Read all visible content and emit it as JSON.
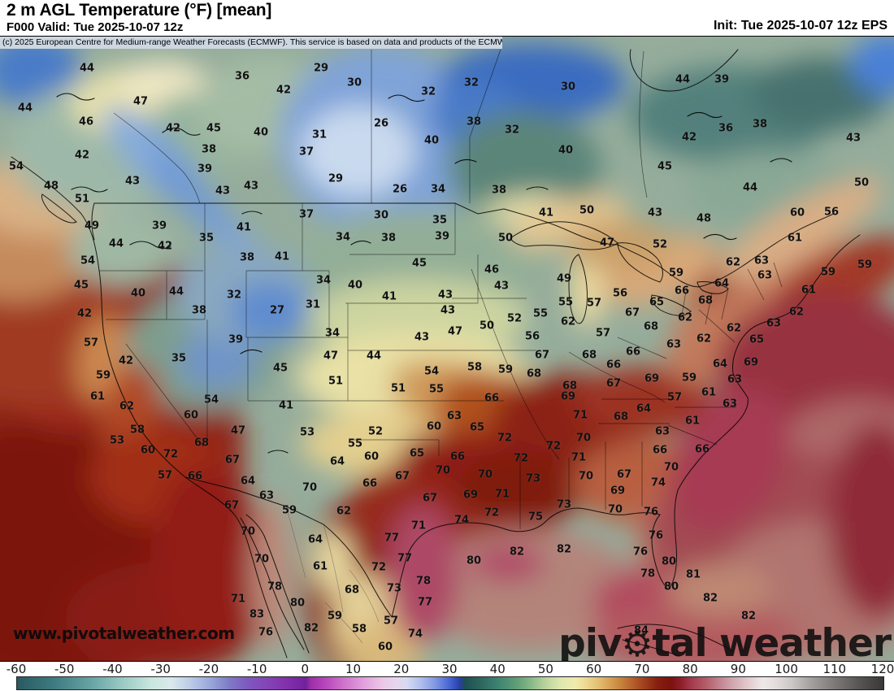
{
  "header": {
    "title": "2 m AGL Temperature (°F) [mean]",
    "subtitle_left": "F000 Valid: Tue 2025-10-07 12z",
    "subtitle_right": "Init: Tue 2025-10-07 12z EPS",
    "copyright": "(c) 2025 European Centre for Medium-range Weather Forecasts (ECMWF). This service is based on data and products of the ECMWF."
  },
  "watermarks": {
    "bottom_left": "www.pivotalweather.com",
    "brand_prefix": "piv",
    "brand_gear": "⚙",
    "brand_suffix": "tal weather"
  },
  "chart_data": {
    "type": "heatmap",
    "title": "2 m AGL Temperature (°F) [mean]",
    "units": "°F",
    "model": "EPS (ECMWF ensemble)",
    "forecast_hour": "F000",
    "init_time": "Tue 2025-10-07 12z",
    "valid_time": "Tue 2025-10-07 12z",
    "region": "North America (CONUS, southern Canada, Mexico)",
    "colorbar": {
      "min": -60,
      "max": 120,
      "tick_step": 10,
      "ticks": [
        -60,
        -50,
        -40,
        -30,
        -20,
        -10,
        0,
        10,
        20,
        30,
        40,
        50,
        60,
        70,
        80,
        90,
        100,
        110,
        120
      ],
      "stops": [
        {
          "t": -60,
          "c": "#2a5962"
        },
        {
          "t": -52,
          "c": "#3f7c83"
        },
        {
          "t": -44,
          "c": "#6ba7a8"
        },
        {
          "t": -38,
          "c": "#9ccac4"
        },
        {
          "t": -32,
          "c": "#c9e7de"
        },
        {
          "t": -28,
          "c": "#d9e9ec"
        },
        {
          "t": -24,
          "c": "#bccbe8"
        },
        {
          "t": -20,
          "c": "#9aa9da"
        },
        {
          "t": -16,
          "c": "#7f7cc8"
        },
        {
          "t": -12,
          "c": "#7e58be"
        },
        {
          "t": -8,
          "c": "#8444b6"
        },
        {
          "t": -4,
          "c": "#8231ac"
        },
        {
          "t": 0,
          "c": "#71219b"
        },
        {
          "t": 1,
          "c": "#9c2fa8"
        },
        {
          "t": 4,
          "c": "#b846bc"
        },
        {
          "t": 8,
          "c": "#cf74cc"
        },
        {
          "t": 12,
          "c": "#e0a0dc"
        },
        {
          "t": 16,
          "c": "#ecc8e8"
        },
        {
          "t": 19,
          "c": "#e6d6ee"
        },
        {
          "t": 21,
          "c": "#d5daf2"
        },
        {
          "t": 24,
          "c": "#aebdee"
        },
        {
          "t": 27,
          "c": "#7e95e2"
        },
        {
          "t": 30,
          "c": "#4463cf"
        },
        {
          "t": 32,
          "c": "#2a3fa4"
        },
        {
          "t": 33,
          "c": "#1d4f52"
        },
        {
          "t": 36,
          "c": "#2a645c"
        },
        {
          "t": 40,
          "c": "#3f8372"
        },
        {
          "t": 44,
          "c": "#62a078"
        },
        {
          "t": 47,
          "c": "#8cba89"
        },
        {
          "t": 50,
          "c": "#bcd59e"
        },
        {
          "t": 53,
          "c": "#e0e8af"
        },
        {
          "t": 56,
          "c": "#f1ebad"
        },
        {
          "t": 58,
          "c": "#edda92"
        },
        {
          "t": 61,
          "c": "#e2bc6f"
        },
        {
          "t": 64,
          "c": "#d1964b"
        },
        {
          "t": 67,
          "c": "#bd6c31"
        },
        {
          "t": 70,
          "c": "#a2441f"
        },
        {
          "t": 73,
          "c": "#861f10"
        },
        {
          "t": 76,
          "c": "#7c120e"
        },
        {
          "t": 78,
          "c": "#8f1f2d"
        },
        {
          "t": 80,
          "c": "#a23a4c"
        },
        {
          "t": 83,
          "c": "#b25c68"
        },
        {
          "t": 86,
          "c": "#c28490"
        },
        {
          "t": 89,
          "c": "#d2abb0"
        },
        {
          "t": 92,
          "c": "#e2cbce"
        },
        {
          "t": 95,
          "c": "#eee9e9"
        },
        {
          "t": 98,
          "c": "#e2dada"
        },
        {
          "t": 101,
          "c": "#cbc7c7"
        },
        {
          "t": 105,
          "c": "#a49f9f"
        },
        {
          "t": 110,
          "c": "#7c7878"
        },
        {
          "t": 115,
          "c": "#575454"
        },
        {
          "t": 120,
          "c": "#393737"
        }
      ]
    },
    "temperature_labels": [
      [
        107,
        83,
        44
      ],
      [
        298,
        93,
        36
      ],
      [
        349,
        110,
        42
      ],
      [
        31,
        132,
        44
      ],
      [
        173,
        124,
        47
      ],
      [
        106,
        149,
        46
      ],
      [
        213,
        157,
        42
      ],
      [
        263,
        157,
        45
      ],
      [
        321,
        162,
        40
      ],
      [
        257,
        183,
        38
      ],
      [
        101,
        190,
        42
      ],
      [
        252,
        207,
        39
      ],
      [
        20,
        204,
        54
      ],
      [
        163,
        222,
        43
      ],
      [
        63,
        228,
        48
      ],
      [
        274,
        234,
        43
      ],
      [
        309,
        228,
        43
      ],
      [
        101,
        244,
        51
      ],
      [
        113,
        277,
        49
      ],
      [
        196,
        277,
        39
      ],
      [
        300,
        279,
        41
      ],
      [
        254,
        292,
        35
      ],
      [
        143,
        299,
        44
      ],
      [
        203,
        302,
        42
      ],
      [
        395,
        83,
        29
      ],
      [
        436,
        101,
        30
      ],
      [
        527,
        112,
        32
      ],
      [
        580,
        101,
        32
      ],
      [
        699,
        106,
        30
      ],
      [
        469,
        151,
        26
      ],
      [
        583,
        149,
        38
      ],
      [
        630,
        159,
        32
      ],
      [
        393,
        165,
        31
      ],
      [
        531,
        172,
        40
      ],
      [
        696,
        184,
        40
      ],
      [
        377,
        186,
        37
      ],
      [
        413,
        219,
        29
      ],
      [
        492,
        232,
        26
      ],
      [
        539,
        232,
        34
      ],
      [
        614,
        233,
        38
      ],
      [
        377,
        263,
        37
      ],
      [
        469,
        264,
        30
      ],
      [
        541,
        270,
        35
      ],
      [
        422,
        291,
        34
      ],
      [
        478,
        292,
        38
      ],
      [
        544,
        290,
        39
      ],
      [
        840,
        97,
        44
      ],
      [
        888,
        97,
        39
      ],
      [
        935,
        152,
        38
      ],
      [
        893,
        157,
        36
      ],
      [
        848,
        168,
        42
      ],
      [
        1050,
        169,
        43
      ],
      [
        818,
        204,
        45
      ],
      [
        923,
        230,
        44
      ],
      [
        1060,
        224,
        50
      ],
      [
        806,
        261,
        43
      ],
      [
        866,
        268,
        48
      ],
      [
        981,
        261,
        60
      ],
      [
        1023,
        260,
        56
      ],
      [
        812,
        300,
        52
      ],
      [
        978,
        292,
        61
      ],
      [
        747,
        298,
        47
      ],
      [
        672,
        261,
        41
      ],
      [
        722,
        258,
        50
      ],
      [
        622,
        292,
        50
      ],
      [
        694,
        342,
        49
      ],
      [
        832,
        335,
        59
      ],
      [
        1019,
        334,
        59
      ],
      [
        1064,
        325,
        59
      ],
      [
        108,
        320,
        54
      ],
      [
        304,
        316,
        38
      ],
      [
        347,
        315,
        41
      ],
      [
        100,
        350,
        45
      ],
      [
        170,
        360,
        40
      ],
      [
        217,
        358,
        44
      ],
      [
        288,
        362,
        32
      ],
      [
        341,
        381,
        27
      ],
      [
        104,
        385,
        42
      ],
      [
        245,
        381,
        38
      ],
      [
        112,
        421,
        57
      ],
      [
        290,
        417,
        39
      ],
      [
        155,
        443,
        42
      ],
      [
        220,
        440,
        35
      ],
      [
        345,
        452,
        45
      ],
      [
        127,
        461,
        59
      ],
      [
        120,
        487,
        61
      ],
      [
        260,
        491,
        54
      ],
      [
        352,
        498,
        41
      ],
      [
        156,
        499,
        62
      ],
      [
        235,
        510,
        60
      ],
      [
        293,
        529,
        47
      ],
      [
        169,
        528,
        58
      ],
      [
        248,
        544,
        68
      ],
      [
        144,
        541,
        53
      ],
      [
        182,
        553,
        60
      ],
      [
        210,
        558,
        72
      ],
      [
        516,
        323,
        45
      ],
      [
        605,
        331,
        46
      ],
      [
        398,
        344,
        34
      ],
      [
        437,
        350,
        40
      ],
      [
        617,
        351,
        43
      ],
      [
        479,
        364,
        41
      ],
      [
        548,
        362,
        43
      ],
      [
        385,
        374,
        31
      ],
      [
        696,
        371,
        55
      ],
      [
        731,
        372,
        57
      ],
      [
        551,
        381,
        43
      ],
      [
        633,
        391,
        52
      ],
      [
        665,
        385,
        55
      ],
      [
        409,
        409,
        34
      ],
      [
        599,
        400,
        50
      ],
      [
        699,
        395,
        62
      ],
      [
        560,
        407,
        47
      ],
      [
        655,
        413,
        56
      ],
      [
        519,
        414,
        43
      ],
      [
        407,
        437,
        47
      ],
      [
        460,
        437,
        44
      ],
      [
        667,
        436,
        67
      ],
      [
        725,
        436,
        68
      ],
      [
        584,
        451,
        58
      ],
      [
        622,
        454,
        59
      ],
      [
        531,
        456,
        54
      ],
      [
        657,
        459,
        68
      ],
      [
        413,
        468,
        51
      ],
      [
        701,
        474,
        68
      ],
      [
        490,
        477,
        51
      ],
      [
        537,
        478,
        55
      ],
      [
        605,
        489,
        66
      ],
      [
        699,
        487,
        69
      ],
      [
        714,
        510,
        71
      ],
      [
        559,
        511,
        63
      ],
      [
        534,
        524,
        60
      ],
      [
        587,
        525,
        65
      ],
      [
        462,
        530,
        52
      ],
      [
        621,
        538,
        72
      ],
      [
        718,
        538,
        70
      ],
      [
        681,
        548,
        72
      ],
      [
        378,
        531,
        53
      ],
      [
        437,
        545,
        55
      ],
      [
        513,
        557,
        65
      ],
      [
        902,
        322,
        62
      ],
      [
        937,
        320,
        63
      ],
      [
        941,
        338,
        63
      ],
      [
        888,
        348,
        64
      ],
      [
        839,
        357,
        66
      ],
      [
        763,
        360,
        56
      ],
      [
        868,
        369,
        68
      ],
      [
        995,
        356,
        61
      ],
      [
        808,
        371,
        65
      ],
      [
        980,
        383,
        62
      ],
      [
        778,
        384,
        67
      ],
      [
        843,
        390,
        62
      ],
      [
        952,
        397,
        63
      ],
      [
        801,
        401,
        68
      ],
      [
        903,
        403,
        62
      ],
      [
        742,
        409,
        57
      ],
      [
        829,
        423,
        63
      ],
      [
        866,
        416,
        62
      ],
      [
        931,
        417,
        65
      ],
      [
        779,
        432,
        66
      ],
      [
        755,
        448,
        66
      ],
      [
        886,
        447,
        64
      ],
      [
        924,
        445,
        69
      ],
      [
        802,
        465,
        69
      ],
      [
        848,
        464,
        59
      ],
      [
        904,
        466,
        63
      ],
      [
        755,
        471,
        67
      ],
      [
        830,
        488,
        57
      ],
      [
        872,
        482,
        61
      ],
      [
        898,
        496,
        63
      ],
      [
        792,
        502,
        64
      ],
      [
        764,
        512,
        68
      ],
      [
        852,
        517,
        61
      ],
      [
        815,
        530,
        63
      ],
      [
        812,
        553,
        66
      ],
      [
        864,
        552,
        66
      ],
      [
        203,
        584,
        57
      ],
      [
        240,
        585,
        66
      ],
      [
        286,
        565,
        67
      ],
      [
        305,
        591,
        64
      ],
      [
        328,
        609,
        63
      ],
      [
        285,
        621,
        67
      ],
      [
        356,
        627,
        59
      ],
      [
        305,
        653,
        70
      ],
      [
        322,
        687,
        70
      ],
      [
        338,
        721,
        78
      ],
      [
        293,
        736,
        71
      ],
      [
        366,
        741,
        80
      ],
      [
        316,
        755,
        83
      ],
      [
        327,
        777,
        76
      ],
      [
        415,
        567,
        64
      ],
      [
        457,
        561,
        60
      ],
      [
        563,
        561,
        66
      ],
      [
        641,
        563,
        72
      ],
      [
        712,
        562,
        71
      ],
      [
        545,
        578,
        70
      ],
      [
        597,
        583,
        70
      ],
      [
        656,
        588,
        73
      ],
      [
        721,
        585,
        70
      ],
      [
        455,
        594,
        66
      ],
      [
        495,
        585,
        67
      ],
      [
        381,
        599,
        70
      ],
      [
        529,
        612,
        67
      ],
      [
        579,
        608,
        69
      ],
      [
        618,
        607,
        71
      ],
      [
        423,
        628,
        62
      ],
      [
        605,
        630,
        72
      ],
      [
        694,
        620,
        73
      ],
      [
        568,
        639,
        74
      ],
      [
        659,
        635,
        75
      ],
      [
        515,
        646,
        71
      ],
      [
        388,
        663,
        64
      ],
      [
        482,
        661,
        77
      ],
      [
        636,
        678,
        82
      ],
      [
        694,
        675,
        82
      ],
      [
        394,
        696,
        61
      ],
      [
        498,
        686,
        77
      ],
      [
        583,
        689,
        80
      ],
      [
        466,
        697,
        72
      ],
      [
        521,
        714,
        78
      ],
      [
        433,
        725,
        68
      ],
      [
        485,
        723,
        73
      ],
      [
        523,
        740,
        77
      ],
      [
        412,
        757,
        59
      ],
      [
        481,
        763,
        57
      ],
      [
        442,
        773,
        58
      ],
      [
        511,
        779,
        74
      ],
      [
        474,
        795,
        60
      ],
      [
        383,
        772,
        82
      ],
      [
        768,
        583,
        67
      ],
      [
        826,
        574,
        70
      ],
      [
        810,
        593,
        74
      ],
      [
        760,
        603,
        69
      ],
      [
        757,
        626,
        70
      ],
      [
        801,
        629,
        76
      ],
      [
        807,
        658,
        76
      ],
      [
        788,
        678,
        76
      ],
      [
        823,
        690,
        80
      ],
      [
        797,
        705,
        78
      ],
      [
        853,
        706,
        81
      ],
      [
        826,
        721,
        80
      ],
      [
        874,
        735,
        82
      ],
      [
        921,
        757,
        82
      ],
      [
        789,
        775,
        84
      ]
    ]
  }
}
